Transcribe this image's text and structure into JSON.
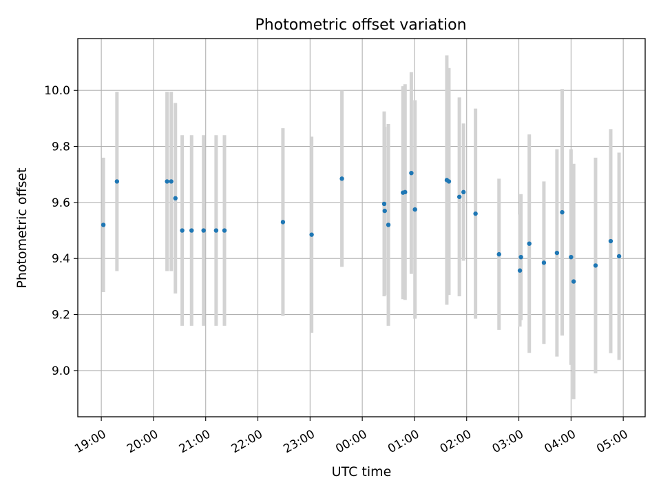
{
  "chart_data": {
    "type": "scatter",
    "title": "Photometric offset variation",
    "xlabel": "UTC time",
    "ylabel": "Photometric offset",
    "xlim": [
      -0.45,
      10.42
    ],
    "ylim": [
      8.835,
      10.185
    ],
    "grid": true,
    "x_ticks": [
      {
        "value": 0,
        "label": "19:00"
      },
      {
        "value": 1,
        "label": "20:00"
      },
      {
        "value": 2,
        "label": "21:00"
      },
      {
        "value": 3,
        "label": "22:00"
      },
      {
        "value": 4,
        "label": "23:00"
      },
      {
        "value": 5,
        "label": "00:00"
      },
      {
        "value": 6,
        "label": "01:00"
      },
      {
        "value": 7,
        "label": "02:00"
      },
      {
        "value": 8,
        "label": "03:00"
      },
      {
        "value": 9,
        "label": "04:00"
      },
      {
        "value": 10,
        "label": "05:00"
      }
    ],
    "y_ticks": [
      {
        "value": 9.0,
        "label": "9.0"
      },
      {
        "value": 9.2,
        "label": "9.2"
      },
      {
        "value": 9.4,
        "label": "9.4"
      },
      {
        "value": 9.6,
        "label": "9.6"
      },
      {
        "value": 9.8,
        "label": "9.8"
      },
      {
        "value": 10.0,
        "label": "10.0"
      }
    ],
    "series": [
      {
        "name": "Photometric offset",
        "marker_color": "#1f77b4",
        "errorbar_color": "#d3d3d3",
        "points": [
          {
            "x": 0.04,
            "y": 9.52,
            "err": 0.24
          },
          {
            "x": 0.3,
            "y": 9.675,
            "err": 0.32
          },
          {
            "x": 1.26,
            "y": 9.675,
            "err": 0.32
          },
          {
            "x": 1.34,
            "y": 9.675,
            "err": 0.32
          },
          {
            "x": 1.42,
            "y": 9.615,
            "err": 0.34
          },
          {
            "x": 1.55,
            "y": 9.5,
            "err": 0.34
          },
          {
            "x": 1.73,
            "y": 9.5,
            "err": 0.34
          },
          {
            "x": 1.96,
            "y": 9.5,
            "err": 0.34
          },
          {
            "x": 2.2,
            "y": 9.5,
            "err": 0.34
          },
          {
            "x": 2.36,
            "y": 9.5,
            "err": 0.34
          },
          {
            "x": 3.48,
            "y": 9.53,
            "err": 0.335
          },
          {
            "x": 4.03,
            "y": 9.485,
            "err": 0.35
          },
          {
            "x": 4.61,
            "y": 9.685,
            "err": 0.315
          },
          {
            "x": 5.42,
            "y": 9.595,
            "err": 0.33
          },
          {
            "x": 5.43,
            "y": 9.57,
            "err": 0.3
          },
          {
            "x": 5.5,
            "y": 9.52,
            "err": 0.36
          },
          {
            "x": 5.78,
            "y": 9.635,
            "err": 0.38
          },
          {
            "x": 5.82,
            "y": 9.637,
            "err": 0.385
          },
          {
            "x": 5.94,
            "y": 9.705,
            "err": 0.36
          },
          {
            "x": 6.01,
            "y": 9.575,
            "err": 0.39
          },
          {
            "x": 6.62,
            "y": 9.68,
            "err": 0.445
          },
          {
            "x": 6.66,
            "y": 9.675,
            "err": 0.405
          },
          {
            "x": 6.86,
            "y": 9.62,
            "err": 0.355
          },
          {
            "x": 6.94,
            "y": 9.637,
            "err": 0.245
          },
          {
            "x": 7.17,
            "y": 9.56,
            "err": 0.375
          },
          {
            "x": 7.62,
            "y": 9.415,
            "err": 0.27
          },
          {
            "x": 8.02,
            "y": 9.357,
            "err": 0.2
          },
          {
            "x": 8.04,
            "y": 9.405,
            "err": 0.225
          },
          {
            "x": 8.2,
            "y": 9.453,
            "err": 0.39
          },
          {
            "x": 8.48,
            "y": 9.385,
            "err": 0.29
          },
          {
            "x": 8.73,
            "y": 9.42,
            "err": 0.37
          },
          {
            "x": 8.83,
            "y": 9.565,
            "err": 0.44
          },
          {
            "x": 9.0,
            "y": 9.405,
            "err": 0.385
          },
          {
            "x": 9.05,
            "y": 9.318,
            "err": 0.42
          },
          {
            "x": 9.47,
            "y": 9.375,
            "err": 0.385
          },
          {
            "x": 9.76,
            "y": 9.462,
            "err": 0.4
          },
          {
            "x": 9.92,
            "y": 9.408,
            "err": 0.37
          }
        ]
      }
    ]
  }
}
